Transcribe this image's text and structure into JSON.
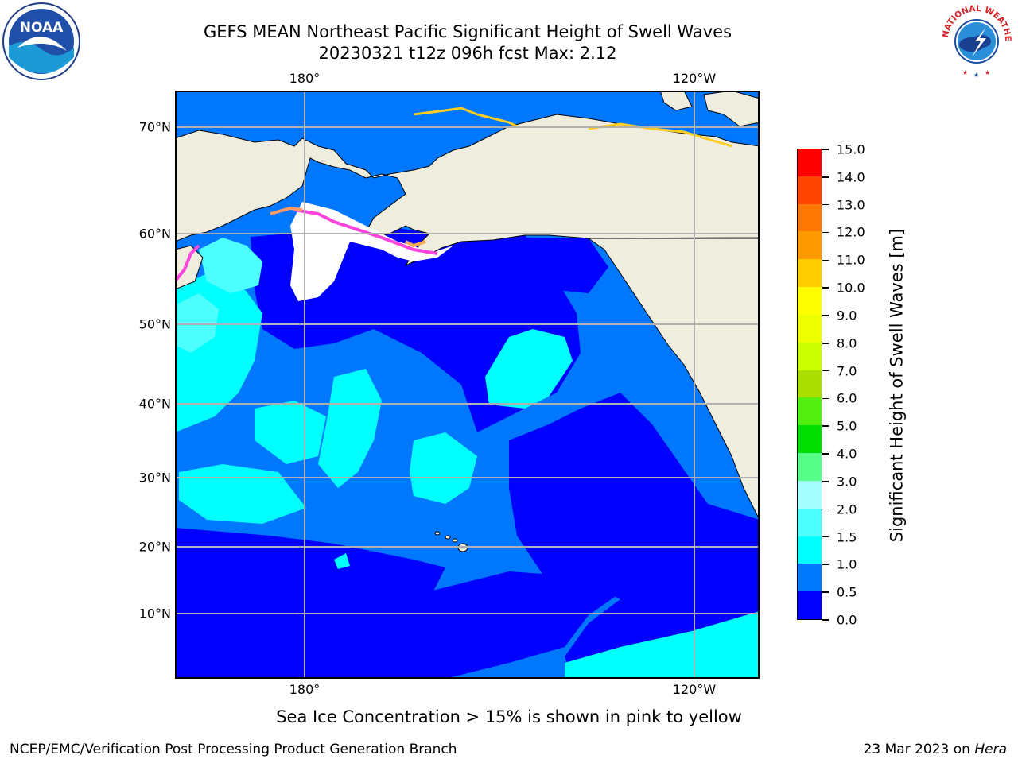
{
  "header": {
    "title_line1": "GEFS MEAN Northeast Pacific Significant Height of Swell Waves",
    "title_line2": "20230321 t12z 096h fcst   Max: 2.12"
  },
  "map": {
    "lon_labels_top": [
      "180°",
      "120°W"
    ],
    "lon_labels_bottom": [
      "180°",
      "120°W"
    ],
    "lat_labels": [
      "70°N",
      "60°N",
      "50°N",
      "40°N",
      "30°N",
      "20°N",
      "10°N"
    ],
    "land_color": "#efedde",
    "sea_ice_color": "#ffffff",
    "grid_color": "#b0b0b0"
  },
  "colorbar": {
    "title": "Significant Height of Swell Waves [m]",
    "labels": [
      "0.0",
      "0.5",
      "1.0",
      "1.5",
      "2.0",
      "3.0",
      "4.0",
      "5.0",
      "6.0",
      "7.0",
      "8.0",
      "9.0",
      "10.0",
      "11.0",
      "12.0",
      "13.0",
      "14.0",
      "15.0"
    ],
    "colors": [
      "#0000ff",
      "#0077ff",
      "#00ffff",
      "#4dffff",
      "#a6ffff",
      "#55ff88",
      "#00dd00",
      "#55ee11",
      "#aadd00",
      "#ccff00",
      "#eeff00",
      "#ffff00",
      "#ffcc00",
      "#ff9900",
      "#ff7700",
      "#ff4400",
      "#ff0000"
    ]
  },
  "footer": {
    "sea_ice_note": "Sea Ice Concentration > 15% is shown in pink to yellow",
    "credit": "NCEP/EMC/Verification Post Processing Product Generation Branch",
    "date_prefix": "23 Mar 2023 on ",
    "machine": "Hera"
  },
  "logos": {
    "noaa_text": "NOAA",
    "nws_text": "NATIONAL WEATHER SERVICE"
  }
}
